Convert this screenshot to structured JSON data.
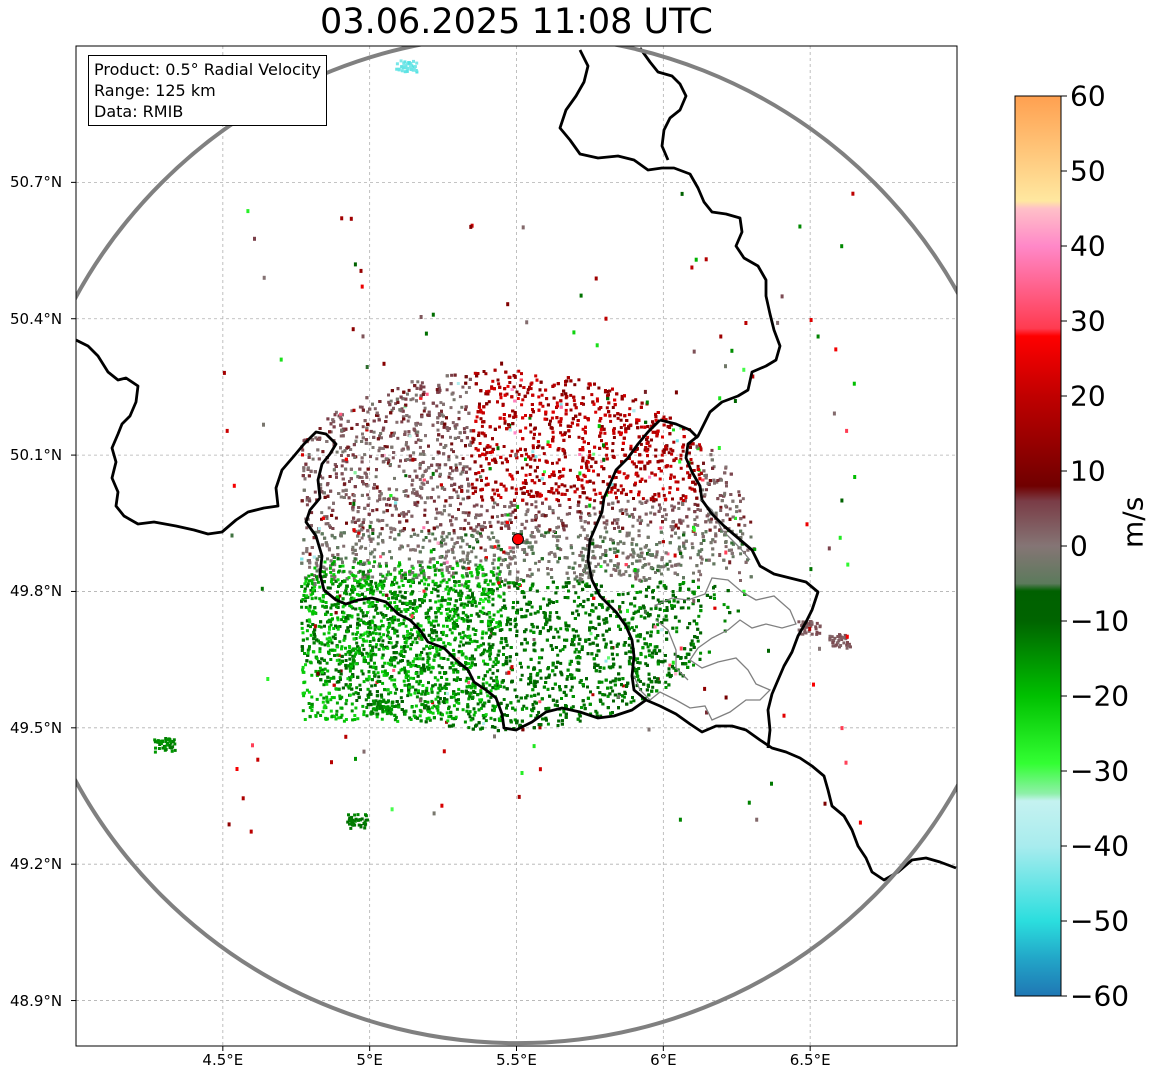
{
  "title": "03.06.2025 11:08 UTC",
  "info": {
    "product": "Product: 0.5° Radial Velocity",
    "range": "Range: 125 km",
    "source": "Data: RMIB"
  },
  "axes": {
    "lat_ticks": [
      "50.7°N",
      "50.4°N",
      "50.1°N",
      "49.8°N",
      "49.5°N",
      "49.2°N",
      "48.9°N"
    ],
    "lon_ticks": [
      "4.5°E",
      "5°E",
      "5.5°E",
      "6°E",
      "6.5°E"
    ],
    "lon_range": [
      4.0,
      7.0
    ],
    "lat_range": [
      48.8,
      51.0
    ]
  },
  "radar_site": {
    "lon": 5.505,
    "lat": 49.915
  },
  "colorbar": {
    "label": "m/s",
    "min": -60,
    "max": 60,
    "ticks": [
      "60",
      "50",
      "40",
      "30",
      "20",
      "10",
      "0",
      "−10",
      "−20",
      "−30",
      "−40",
      "−50",
      "−60"
    ],
    "tick_values": [
      60,
      50,
      40,
      30,
      20,
      10,
      0,
      -10,
      -20,
      -30,
      -40,
      -50,
      -60
    ],
    "stops": [
      {
        "v": -60,
        "c": "#1f77b4"
      },
      {
        "v": -55,
        "c": "#22a6c8"
      },
      {
        "v": -50,
        "c": "#2bdede"
      },
      {
        "v": -40,
        "c": "#a8ecee"
      },
      {
        "v": -34,
        "c": "#c5f2f0"
      },
      {
        "v": -33,
        "c": "#8ef0a8"
      },
      {
        "v": -29,
        "c": "#33ff33"
      },
      {
        "v": -20,
        "c": "#00c000"
      },
      {
        "v": -10,
        "c": "#006400"
      },
      {
        "v": -6,
        "c": "#006000"
      },
      {
        "v": -5,
        "c": "#5c7a5c"
      },
      {
        "v": 0,
        "c": "#857575"
      },
      {
        "v": 6,
        "c": "#7a3c46"
      },
      {
        "v": 8,
        "c": "#700000"
      },
      {
        "v": 20,
        "c": "#c00000"
      },
      {
        "v": 28,
        "c": "#ff0000"
      },
      {
        "v": 29,
        "c": "#ff3b50"
      },
      {
        "v": 40,
        "c": "#ff88c8"
      },
      {
        "v": 45,
        "c": "#ffc0c8"
      },
      {
        "v": 46,
        "c": "#ffe8a0"
      },
      {
        "v": 60,
        "c": "#ffa050"
      }
    ]
  }
}
